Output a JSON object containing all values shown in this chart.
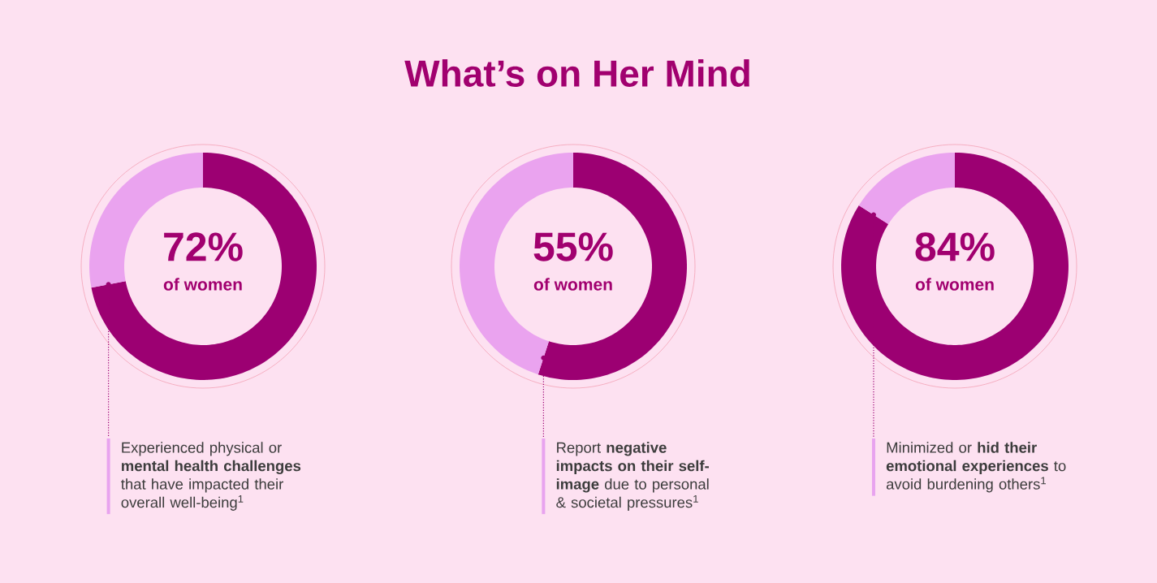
{
  "chart_data": [
    {
      "type": "other",
      "title": "What’s on Her Mind"
    },
    {
      "type": "donut",
      "categories": [
        null,
        null
      ],
      "values": [
        72,
        28
      ],
      "colors": [
        "#9c0072",
        "#eaa3ef"
      ],
      "value_labels": [
        "72%",
        null
      ],
      "annotations": [
        "of women",
        "Experienced physical or **mental health challenges** that have impacted their overall well-being$^{1}$"
      ]
    },
    {
      "type": "donut",
      "categories": [
        null,
        null
      ],
      "values": [
        55,
        45
      ],
      "colors": [
        "#9c0072",
        "#eaa3ef"
      ],
      "value_labels": [
        "55%",
        null
      ],
      "annotations": [
        "of women",
        "Report **negative impacts on their self-image** due to personal & societal pressures$^{1}$"
      ]
    },
    {
      "type": "donut",
      "categories": [
        null,
        null
      ],
      "values": [
        84,
        16
      ],
      "colors": [
        "#9c0072",
        "#eaa3ef"
      ],
      "value_labels": [
        "84%",
        null
      ],
      "annotations": [
        "of women",
        "Minimized or **hid their emotional experiences** to avoid burdening others$^{1}$"
      ]
    }
  ]
}
